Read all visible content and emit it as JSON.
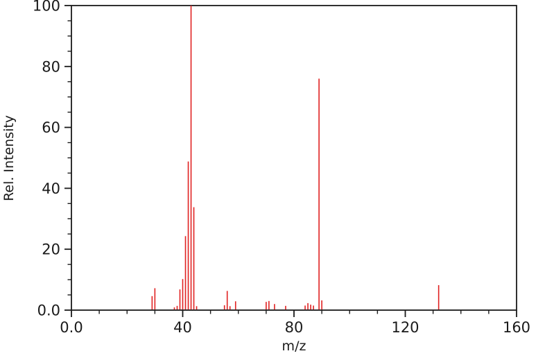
{
  "chart_data": {
    "type": "bar",
    "subtype": "mass-spectrum-stick-plot",
    "title": "",
    "xlabel": "m/z",
    "ylabel": "Rel. Intensity",
    "xlim": [
      0,
      160
    ],
    "ylim": [
      0,
      100
    ],
    "x_major_ticks": [
      0,
      40,
      80,
      120,
      160
    ],
    "x_major_tick_labels": [
      "0.0",
      "40",
      "80",
      "120",
      "160"
    ],
    "x_minor_tick_step": 10,
    "y_major_ticks": [
      0,
      20,
      40,
      60,
      80,
      100
    ],
    "y_major_tick_labels": [
      "0.0",
      "20",
      "40",
      "60",
      "80",
      "100"
    ],
    "y_minor_tick_step": 5,
    "grid": false,
    "frame": true,
    "legend": null,
    "bar_color": "#e02020",
    "axis_color": "#1a1a1a",
    "background_color": "#ffffff",
    "series": [
      {
        "name": "peaks",
        "points_format": [
          "mz",
          "rel_intensity"
        ],
        "points": [
          [
            29,
            4.6
          ],
          [
            30,
            7.2
          ],
          [
            37,
            0.9
          ],
          [
            38,
            1.4
          ],
          [
            39,
            6.8
          ],
          [
            40,
            10.2
          ],
          [
            41,
            24.3
          ],
          [
            42,
            48.8
          ],
          [
            43,
            100
          ],
          [
            44,
            33.8
          ],
          [
            45,
            1.3
          ],
          [
            55,
            1.6
          ],
          [
            56,
            6.3
          ],
          [
            57,
            1.3
          ],
          [
            59,
            2.9
          ],
          [
            70,
            2.7
          ],
          [
            71,
            3.0
          ],
          [
            73,
            2.0
          ],
          [
            77,
            1.4
          ],
          [
            84,
            1.5
          ],
          [
            85,
            2.3
          ],
          [
            86,
            1.8
          ],
          [
            87,
            1.5
          ],
          [
            89,
            76
          ],
          [
            90,
            3.2
          ],
          [
            132,
            8.2
          ]
        ]
      }
    ]
  }
}
